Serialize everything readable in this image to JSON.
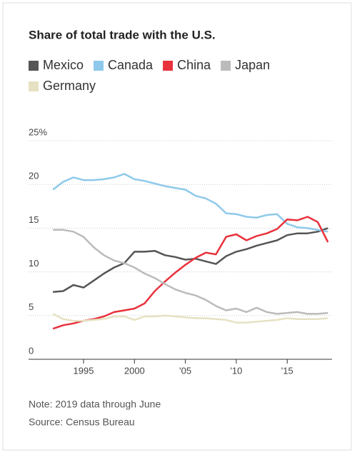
{
  "chart_data": {
    "type": "line",
    "title": "Share of total trade with the U.S.",
    "note": "Note: 2019 data through June",
    "source": "Source: Census Bureau",
    "x": [
      1992,
      1993,
      1994,
      1995,
      1996,
      1997,
      1998,
      1999,
      2000,
      2001,
      2002,
      2003,
      2004,
      2005,
      2006,
      2007,
      2008,
      2009,
      2010,
      2011,
      2012,
      2013,
      2014,
      2015,
      2016,
      2017,
      2018,
      2019
    ],
    "series": [
      {
        "name": "Mexico",
        "color": "#555555",
        "values": [
          7.7,
          7.8,
          8.5,
          8.2,
          9.0,
          9.8,
          10.5,
          11.0,
          12.3,
          12.3,
          12.4,
          11.9,
          11.7,
          11.4,
          11.5,
          11.2,
          10.9,
          11.8,
          12.3,
          12.6,
          13.0,
          13.3,
          13.6,
          14.2,
          14.4,
          14.4,
          14.6,
          15.0
        ]
      },
      {
        "name": "Canada",
        "color": "#8ec9eb",
        "values": [
          19.4,
          20.3,
          20.8,
          20.5,
          20.5,
          20.6,
          20.8,
          21.2,
          20.6,
          20.4,
          20.1,
          19.8,
          19.6,
          19.4,
          18.7,
          18.4,
          17.8,
          16.7,
          16.6,
          16.3,
          16.2,
          16.5,
          16.6,
          15.5,
          15.1,
          15.0,
          14.8,
          14.6
        ]
      },
      {
        "name": "China",
        "color": "#e8323c",
        "values": [
          3.5,
          3.9,
          4.1,
          4.4,
          4.6,
          4.9,
          5.4,
          5.6,
          5.8,
          6.4,
          7.8,
          8.9,
          9.9,
          10.8,
          11.6,
          12.2,
          12.0,
          14.0,
          14.3,
          13.6,
          14.1,
          14.4,
          14.9,
          16.0,
          15.9,
          16.3,
          15.7,
          13.4
        ]
      },
      {
        "name": "Japan",
        "color": "#bbbbbb",
        "values": [
          14.8,
          14.8,
          14.6,
          14.0,
          12.8,
          11.9,
          11.3,
          11.0,
          10.5,
          9.8,
          9.3,
          8.6,
          8.0,
          7.6,
          7.3,
          6.8,
          6.1,
          5.6,
          5.8,
          5.4,
          5.9,
          5.4,
          5.2,
          5.3,
          5.4,
          5.2,
          5.2,
          5.3
        ]
      },
      {
        "name": "Germany",
        "color": "#e6e1c3",
        "values": [
          5.2,
          4.6,
          4.4,
          4.4,
          4.5,
          4.6,
          4.9,
          4.9,
          4.5,
          4.9,
          4.9,
          5.0,
          4.9,
          4.8,
          4.7,
          4.7,
          4.6,
          4.5,
          4.2,
          4.2,
          4.3,
          4.4,
          4.5,
          4.7,
          4.6,
          4.6,
          4.6,
          4.7
        ]
      }
    ],
    "xlim": [
      1989.6,
      2019.4
    ],
    "xticks": [
      1995,
      2000,
      {
        "value": 2005,
        "label": "'05"
      },
      {
        "value": 2010,
        "label": "'10"
      },
      {
        "value": 2015,
        "label": "'15"
      }
    ],
    "ylim": [
      0,
      25
    ],
    "yticks": [
      0,
      5,
      10,
      15,
      20,
      {
        "value": 25,
        "label": "25%"
      }
    ],
    "grid": true
  }
}
